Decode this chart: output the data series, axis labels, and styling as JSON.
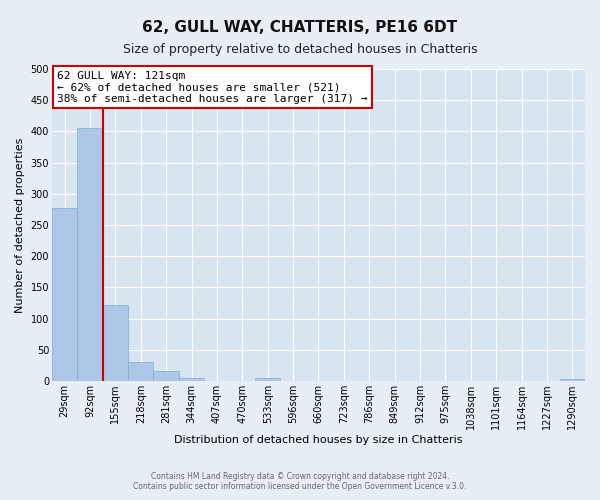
{
  "title": "62, GULL WAY, CHATTERIS, PE16 6DT",
  "subtitle": "Size of property relative to detached houses in Chatteris",
  "xlabel": "Distribution of detached houses by size in Chatteris",
  "ylabel": "Number of detached properties",
  "bar_labels": [
    "29sqm",
    "92sqm",
    "155sqm",
    "218sqm",
    "281sqm",
    "344sqm",
    "407sqm",
    "470sqm",
    "533sqm",
    "596sqm",
    "660sqm",
    "723sqm",
    "786sqm",
    "849sqm",
    "912sqm",
    "975sqm",
    "1038sqm",
    "1101sqm",
    "1164sqm",
    "1227sqm",
    "1290sqm"
  ],
  "bar_values": [
    277,
    405,
    122,
    30,
    16,
    5,
    0,
    0,
    5,
    0,
    0,
    0,
    0,
    0,
    0,
    0,
    0,
    0,
    0,
    0,
    3
  ],
  "bar_color": "#aec6e8",
  "bar_edge_color": "#7aafd4",
  "vline_color": "#cc0000",
  "vline_position": 1.5,
  "ylim": [
    0,
    500
  ],
  "yticks": [
    0,
    50,
    100,
    150,
    200,
    250,
    300,
    350,
    400,
    450,
    500
  ],
  "annotation_title": "62 GULL WAY: 121sqm",
  "annotation_line1": "← 62% of detached houses are smaller (521)",
  "annotation_line2": "38% of semi-detached houses are larger (317) →",
  "annotation_box_color": "#ffffff",
  "annotation_box_edge": "#cc0000",
  "footer1": "Contains HM Land Registry data © Crown copyright and database right 2024.",
  "footer2": "Contains public sector information licensed under the Open Government Licence v.3.0.",
  "bg_color": "#e8eef5",
  "plot_bg_color": "#d8e4f0",
  "grid_color": "#ffffff",
  "title_fontsize": 11,
  "subtitle_fontsize": 9,
  "axis_label_fontsize": 8,
  "tick_fontsize": 7,
  "annotation_fontsize": 8
}
